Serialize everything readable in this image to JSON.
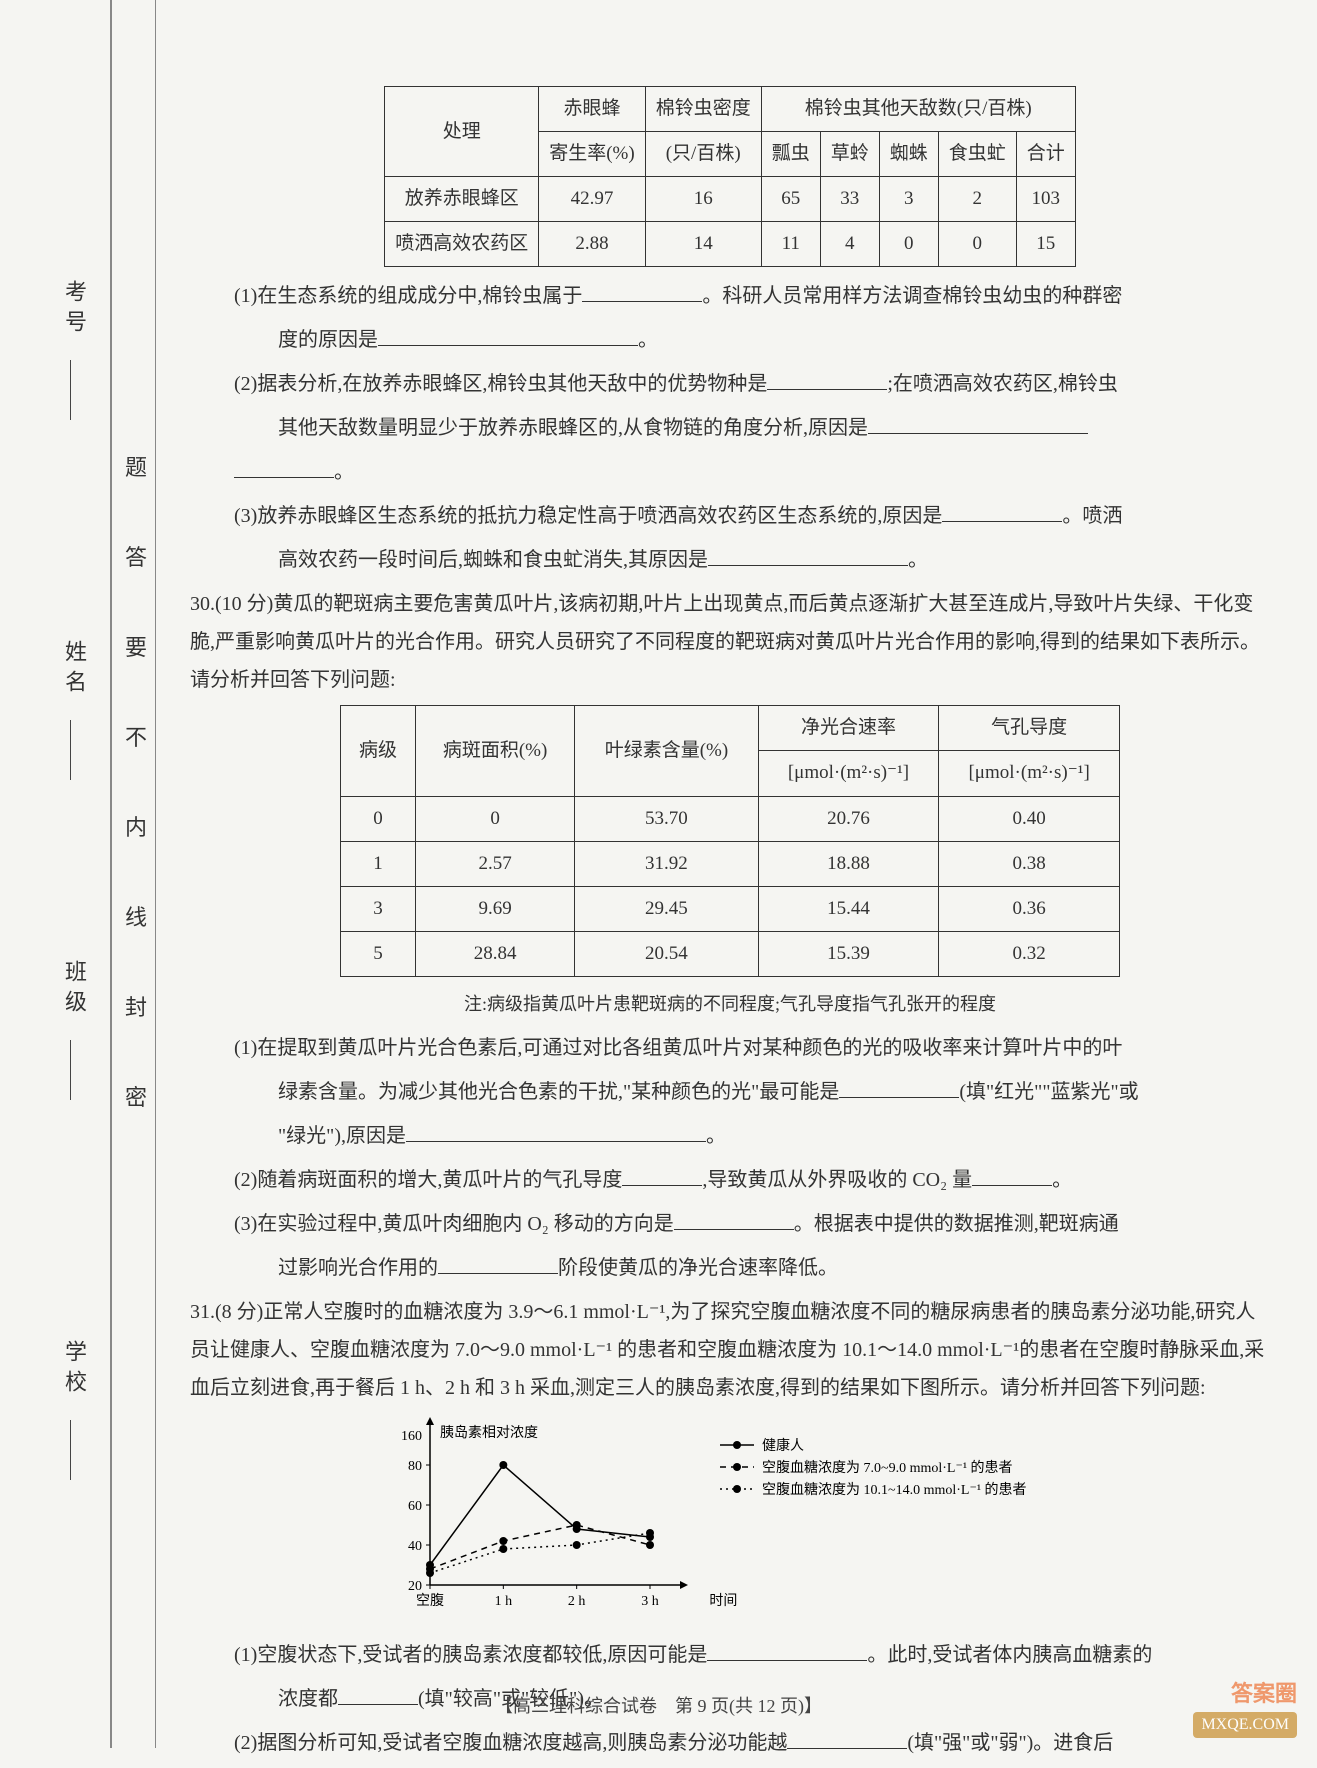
{
  "side": {
    "labels": [
      "考号",
      "姓名",
      "班级",
      "学校"
    ],
    "mid": [
      "题",
      "答",
      "要",
      "不",
      "内",
      "线",
      "封",
      "密"
    ]
  },
  "table1": {
    "header_top": [
      "处理",
      "赤眼蜂",
      "棉铃虫密度",
      "棉铃虫其他天敌数(只/百株)"
    ],
    "header_sub_left": [
      "寄生率(%)",
      "(只/百株)"
    ],
    "header_sub_right": [
      "瓢虫",
      "草蛉",
      "蜘蛛",
      "食虫虻",
      "合计"
    ],
    "rows": [
      {
        "c": [
          "放养赤眼蜂区",
          "42.97",
          "16",
          "65",
          "33",
          "3",
          "2",
          "103"
        ]
      },
      {
        "c": [
          "喷洒高效农药区",
          "2.88",
          "14",
          "11",
          "4",
          "0",
          "0",
          "15"
        ]
      }
    ]
  },
  "q29": {
    "p1a": "(1)在生态系统的组成成分中,棉铃虫属于",
    "p1b": "。科研人员常用样方法调查棉铃虫幼虫的种群密",
    "p1c": "度的原因是",
    "p2a": "(2)据表分析,在放养赤眼蜂区,棉铃虫其他天敌中的优势物种是",
    "p2b": ";在喷洒高效农药区,棉铃虫",
    "p2c": "其他天敌数量明显少于放养赤眼蜂区的,从食物链的角度分析,原因是",
    "p3a": "(3)放养赤眼蜂区生态系统的抵抗力稳定性高于喷洒高效农药区生态系统的,原因是",
    "p3b": "。喷洒",
    "p3c": "高效农药一段时间后,蜘蛛和食虫虻消失,其原因是"
  },
  "q30": {
    "intro": "30.(10 分)黄瓜的靶斑病主要危害黄瓜叶片,该病初期,叶片上出现黄点,而后黄点逐渐扩大甚至连成片,导致叶片失绿、干化变脆,严重影响黄瓜叶片的光合作用。研究人员研究了不同程度的靶斑病对黄瓜叶片光合作用的影响,得到的结果如下表所示。请分析并回答下列问题:",
    "headers": [
      "病级",
      "病斑面积(%)",
      "叶绿素含量(%)",
      "净光合速率",
      "气孔导度"
    ],
    "unit1": "[μmol·(m²·s)⁻¹]",
    "unit2": "[μmol·(m²·s)⁻¹]",
    "rows": [
      {
        "c": [
          "0",
          "0",
          "53.70",
          "20.76",
          "0.40"
        ]
      },
      {
        "c": [
          "1",
          "2.57",
          "31.92",
          "18.88",
          "0.38"
        ]
      },
      {
        "c": [
          "3",
          "9.69",
          "29.45",
          "15.44",
          "0.36"
        ]
      },
      {
        "c": [
          "5",
          "28.84",
          "20.54",
          "15.39",
          "0.32"
        ]
      }
    ],
    "note": "注:病级指黄瓜叶片患靶斑病的不同程度;气孔导度指气孔张开的程度",
    "p1a": "(1)在提取到黄瓜叶片光合色素后,可通过对比各组黄瓜叶片对某种颜色的光的吸收率来计算叶片中的叶",
    "p1b": "绿素含量。为减少其他光合色素的干扰,\"某种颜色的光\"最可能是",
    "p1c": "(填\"红光\"\"蓝紫光\"或",
    "p1d": "\"绿光\"),原因是",
    "p2a": "(2)随着病斑面积的增大,黄瓜叶片的气孔导度",
    "p2b": ",导致黄瓜从外界吸收的 CO₂ 量",
    "p3a": "(3)在实验过程中,黄瓜叶肉细胞内 O₂ 移动的方向是",
    "p3b": "。根据表中提供的数据推测,靶斑病通",
    "p3c": "过影响光合作用的",
    "p3d": "阶段使黄瓜的净光合速率降低。"
  },
  "q31": {
    "intro": "31.(8 分)正常人空腹时的血糖浓度为 3.9～6.1 mmol·L⁻¹,为了探究空腹血糖浓度不同的糖尿病患者的胰岛素分泌功能,研究人员让健康人、空腹血糖浓度为 7.0～9.0 mmol·L⁻¹ 的患者和空腹血糖浓度为 10.1～14.0 mmol·L⁻¹的患者在空腹时静脉采血,采血后立刻进食,再于餐后 1 h、2 h 和 3 h 采血,测定三人的胰岛素浓度,得到的结果如下图所示。请分析并回答下列问题:",
    "chart": {
      "ylabel": "胰岛素相对浓度",
      "yticks": [
        20,
        40,
        60,
        80,
        160
      ],
      "xcats": [
        "空腹",
        "1 h",
        "2 h",
        "3 h",
        "时间"
      ],
      "legend": [
        "健康人",
        "空腹血糖浓度为 7.0~9.0 mmol·L⁻¹ 的患者",
        "空腹血糖浓度为 10.1~14.0 mmol·L⁻¹ 的患者"
      ],
      "series": [
        {
          "style": "solid",
          "pts": [
            30,
            80,
            48,
            44
          ]
        },
        {
          "style": "dash",
          "pts": [
            28,
            42,
            50,
            40
          ]
        },
        {
          "style": "dot",
          "pts": [
            26,
            38,
            40,
            46
          ]
        }
      ],
      "colors": {
        "axis": "#000",
        "bg": "#f5f5f2"
      }
    },
    "p1a": "(1)空腹状态下,受试者的胰岛素浓度都较低,原因可能是",
    "p1b": "。此时,受试者体内胰高血糖素的",
    "p1c": "浓度都",
    "p1d": "(填\"较高\"或\"较低\")。",
    "p2a": "(2)据图分析可知,受试者空腹血糖浓度越高,则胰岛素分泌功能越",
    "p2b": "(填\"强\"或\"弱\")。进食后"
  },
  "footer": "【高三理科综合试卷　第 9 页(共 12 页)】",
  "wm1": "答案圈",
  "wm2": "MXQE.COM"
}
